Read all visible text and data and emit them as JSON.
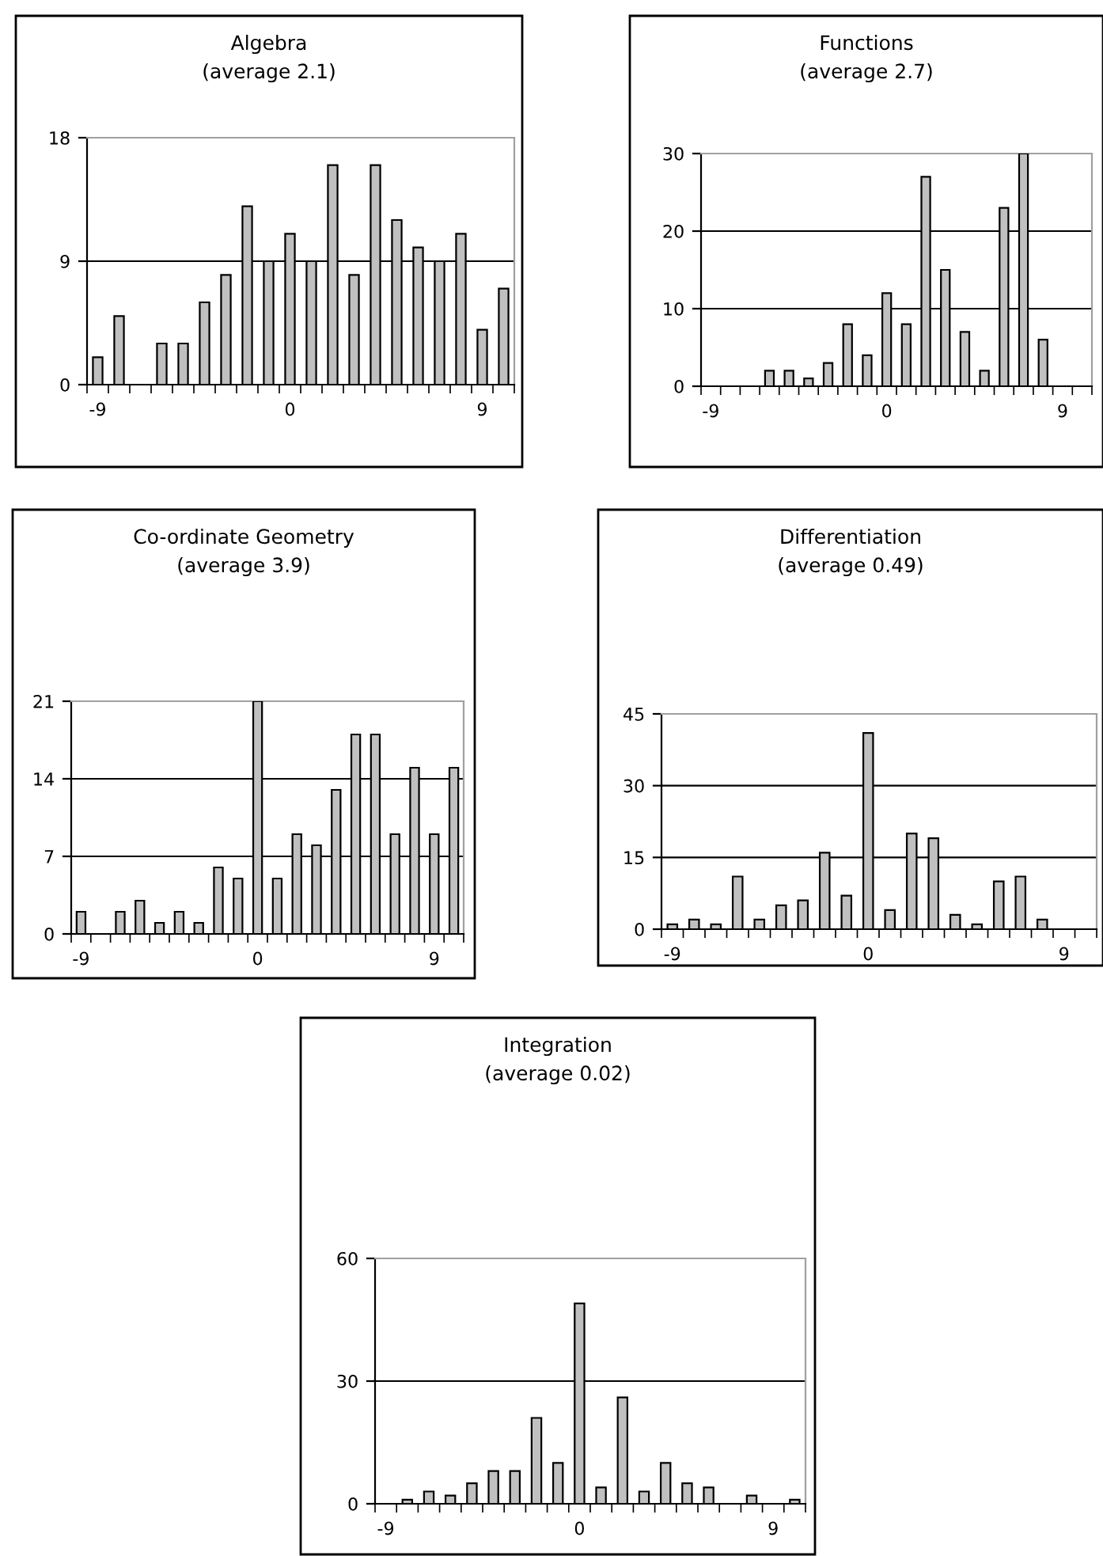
{
  "chart_data": [
    {
      "type": "bar",
      "title": "Algebra",
      "subtitle": "(average 2.1)",
      "categories": [
        "-9",
        null,
        null,
        null,
        null,
        null,
        null,
        null,
        null,
        "0",
        null,
        null,
        null,
        null,
        null,
        null,
        null,
        null,
        "9",
        null
      ],
      "values": [
        2,
        5,
        0,
        3,
        3,
        6,
        8,
        13,
        9,
        11,
        9,
        16,
        8,
        16,
        12,
        10,
        9,
        11,
        4,
        7
      ],
      "color": "#c0c0c0",
      "ylim": [
        0,
        18
      ],
      "yticks": [
        0,
        9,
        18
      ],
      "grid": "y"
    },
    {
      "type": "bar",
      "title": "Functions",
      "subtitle": "(average 2.7)",
      "categories": [
        "-9",
        null,
        null,
        null,
        null,
        null,
        null,
        null,
        null,
        "0",
        null,
        null,
        null,
        null,
        null,
        null,
        null,
        null,
        "9",
        null
      ],
      "values": [
        0,
        0,
        0,
        2,
        2,
        1,
        3,
        8,
        4,
        12,
        8,
        27,
        15,
        7,
        2,
        23,
        30,
        6,
        0,
        0
      ],
      "color": "#c0c0c0",
      "ylim": [
        0,
        30
      ],
      "yticks": [
        0,
        10,
        20,
        30
      ],
      "grid": "y"
    },
    {
      "type": "bar",
      "title": "Co-ordinate Geometry",
      "subtitle": "(average 3.9)",
      "categories": [
        "-9",
        null,
        null,
        null,
        null,
        null,
        null,
        null,
        null,
        "0",
        null,
        null,
        null,
        null,
        null,
        null,
        null,
        null,
        "9",
        null
      ],
      "values": [
        2,
        0,
        2,
        3,
        1,
        2,
        1,
        6,
        5,
        21,
        5,
        9,
        8,
        13,
        18,
        18,
        9,
        15,
        9,
        15
      ],
      "color": "#c0c0c0",
      "ylim": [
        0,
        21
      ],
      "yticks": [
        0,
        7,
        14,
        21
      ],
      "grid": "y"
    },
    {
      "type": "bar",
      "title": "Differentiation",
      "subtitle": "(average 0.49)",
      "categories": [
        "-9",
        null,
        null,
        null,
        null,
        null,
        null,
        null,
        null,
        "0",
        null,
        null,
        null,
        null,
        null,
        null,
        null,
        null,
        "9",
        null
      ],
      "values": [
        1,
        2,
        1,
        11,
        2,
        5,
        6,
        16,
        7,
        41,
        4,
        20,
        19,
        3,
        1,
        10,
        11,
        2,
        0,
        0
      ],
      "color": "#c0c0c0",
      "ylim": [
        0,
        45
      ],
      "yticks": [
        0,
        15,
        30,
        45
      ],
      "grid": "y"
    },
    {
      "type": "bar",
      "title": "Integration",
      "subtitle": "(average 0.02)",
      "categories": [
        "-9",
        null,
        null,
        null,
        null,
        null,
        null,
        null,
        null,
        "0",
        null,
        null,
        null,
        null,
        null,
        null,
        null,
        null,
        "9",
        null
      ],
      "values": [
        0,
        1,
        3,
        2,
        5,
        8,
        8,
        21,
        10,
        49,
        4,
        26,
        3,
        10,
        5,
        4,
        0,
        2,
        0,
        1
      ],
      "color": "#c0c0c0",
      "ylim": [
        0,
        60
      ],
      "yticks": [
        0,
        30,
        60
      ],
      "grid": "y"
    }
  ]
}
